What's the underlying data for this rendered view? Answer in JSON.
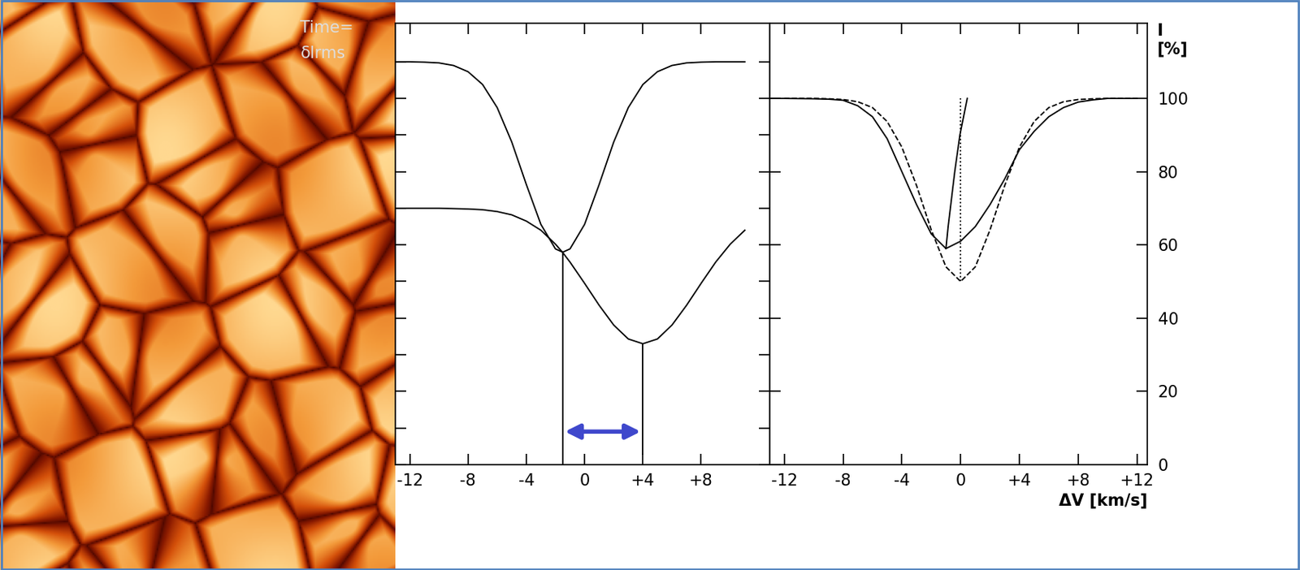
{
  "image": {
    "texts": [
      "Time=",
      "δIrms"
    ]
  },
  "chart_data": [
    {
      "type": "line",
      "xlim": [
        -13,
        12.7
      ],
      "ylim": [
        0,
        120.5
      ],
      "xticks": [
        -12,
        -8,
        -4,
        0,
        {
          "value": 4,
          "label": "+4"
        },
        {
          "value": 8,
          "label": "+8"
        }
      ],
      "yticks": [
        0,
        10,
        20,
        30,
        40,
        50,
        60,
        70,
        80,
        90,
        100,
        110
      ],
      "tick_labels": "x",
      "series": [
        {
          "x": [
            -13,
            -12,
            -11,
            -10,
            -9,
            -8,
            -7,
            -6,
            -5,
            -4,
            -3,
            -2,
            -1.5,
            -1,
            0,
            1,
            2,
            3,
            4,
            5,
            6,
            7,
            8,
            9,
            10,
            11
          ],
          "values": [
            110,
            110,
            109.9,
            109.7,
            109.0,
            107.3,
            103.8,
            97.5,
            88.1,
            76.5,
            65.6,
            58.9,
            58,
            58.9,
            65.6,
            76.5,
            88.1,
            97.5,
            103.8,
            107.3,
            109.0,
            109.7,
            109.9,
            110,
            110,
            110
          ],
          "color": "#000000",
          "line_style": "solid"
        },
        {
          "x": [
            -13,
            -12,
            -11,
            -10,
            -9,
            -8,
            -7,
            -6,
            -5,
            -4,
            -3,
            -2,
            -1.5,
            -1,
            0,
            1,
            2,
            3,
            4,
            5,
            6,
            7,
            8,
            9,
            10,
            11
          ],
          "values": [
            70,
            70,
            70,
            70,
            69.9,
            69.8,
            69.6,
            69.1,
            68.2,
            66.5,
            64.0,
            60.2,
            57.9,
            55.3,
            49.5,
            43.5,
            38.1,
            34.3,
            33.0,
            34.3,
            38.1,
            43.5,
            49.5,
            55.3,
            60.2,
            64.0
          ],
          "color": "#000000",
          "line_style": "solid"
        },
        {
          "x": [
            -1.5,
            -1.5
          ],
          "values": [
            58,
            0
          ],
          "color": "#000000",
          "line_style": "solid"
        },
        {
          "x": [
            4,
            4
          ],
          "values": [
            33,
            3
          ],
          "color": "#000000",
          "line_style": "solid"
        },
        {
          "type": "arrow",
          "x": [
            -1.5,
            4
          ],
          "values": [
            9,
            9
          ],
          "color": "#3f48cc"
        }
      ]
    },
    {
      "type": "line",
      "xlim": [
        -13,
        12.7
      ],
      "ylim": [
        0,
        120.5
      ],
      "xticks": [
        -12,
        -8,
        -4,
        0,
        {
          "value": 4,
          "label": "+4"
        },
        {
          "value": 8,
          "label": "+8"
        },
        {
          "value": 12,
          "label": "+12"
        }
      ],
      "yticks": [
        0,
        20,
        40,
        60,
        80,
        100
      ],
      "tick_labels": true,
      "x_label": "ΔV [km/s]",
      "y_label": "I\n[%]",
      "series": [
        {
          "x": [
            -13,
            -12,
            -10,
            -9,
            -8,
            -7,
            -6,
            -5,
            -4,
            -3,
            -2,
            -1,
            0,
            1,
            2,
            3,
            4,
            5,
            6,
            7,
            8,
            9,
            10,
            12
          ],
          "values": [
            100,
            100,
            99.9,
            99.8,
            99.5,
            98,
            95,
            89,
            80,
            71,
            63,
            59,
            61,
            65,
            71,
            78,
            86,
            91,
            95,
            97.5,
            99,
            99.6,
            100,
            100
          ],
          "color": "#000000",
          "line_style": "solid"
        },
        {
          "x": [
            -12,
            -10,
            -9,
            -8,
            -7,
            -6,
            -5,
            -4,
            -3,
            -2,
            -1,
            0,
            1,
            2,
            3,
            4,
            5,
            6,
            7,
            8,
            9,
            10,
            12
          ],
          "values": [
            100,
            100,
            99.9,
            99.7,
            99.1,
            97.5,
            93.7,
            86.7,
            76.2,
            64.1,
            54.0,
            50,
            54.0,
            64.1,
            76.2,
            86.7,
            93.7,
            97.5,
            99.1,
            99.7,
            99.9,
            100,
            100
          ],
          "color": "#000000",
          "line_style": "dashed"
        },
        {
          "x": [
            -1.0,
            -0.85,
            -0.7,
            -0.4,
            -0.05,
            0.45
          ],
          "values": [
            59,
            65,
            70,
            80,
            90,
            100
          ],
          "color": "#000000",
          "line_style": "solid"
        },
        {
          "x": [
            0,
            0
          ],
          "values": [
            50,
            100
          ],
          "color": "#000000",
          "line_style": "dotted"
        }
      ]
    }
  ]
}
